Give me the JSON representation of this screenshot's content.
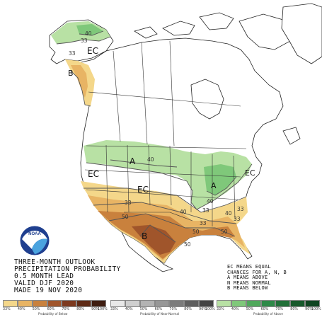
{
  "map": {
    "colors": {
      "below_33": "#f4d78a",
      "below_40": "#e8b464",
      "below_50": "#c9813d",
      "below_60": "#a0552b",
      "above_33": "#b8e1a4",
      "above_40": "#7fc87a",
      "land": "#ffffff",
      "water": "#ffffff",
      "border": "#222222"
    },
    "labels": [
      {
        "text": "EC",
        "id": "ec-alaska"
      },
      {
        "text": "B",
        "id": "b-pacific-nw"
      },
      {
        "text": "A",
        "id": "a-northern-tier"
      },
      {
        "text": "A",
        "id": "a-ohio-valley"
      },
      {
        "text": "EC",
        "id": "ec-west"
      },
      {
        "text": "EC",
        "id": "ec-central"
      },
      {
        "text": "EC",
        "id": "ec-northeast"
      },
      {
        "text": "B",
        "id": "b-southwest"
      }
    ],
    "contours": [
      "40",
      "33",
      "33",
      "40",
      "33",
      "40",
      "33",
      "50",
      "50",
      "33",
      "33",
      "40",
      "50",
      "50",
      "40",
      "33"
    ]
  },
  "info": {
    "line1": "THREE-MONTH OUTLOOK",
    "line2": "PRECIPITATION PROBABILITY",
    "line3": "0.5 MONTH LEAD",
    "line4": "VALID DJF 2020",
    "line5": "MADE 19 NOV 2020"
  },
  "legend_note": {
    "line1": "EC MEANS EQUAL",
    "line2": "CHANCES FOR A, N, B",
    "line3": "A MEANS ABOVE",
    "line4": "N MEANS NORMAL",
    "line5": "B MEANS BELOW"
  },
  "scales": {
    "below": {
      "caption": "Probability of Below",
      "ticks": [
        "33%",
        "40%",
        "50%",
        "60%",
        "70%",
        "80%",
        "90%",
        "100%"
      ],
      "colors": [
        "#f4d78a",
        "#e8b464",
        "#c9813d",
        "#a0552b",
        "#7d3a1f",
        "#5e2a16",
        "#3f1d10"
      ]
    },
    "normal": {
      "caption": "Probability of Near-Normal",
      "ticks": [
        "33%",
        "40%",
        "50%",
        "60%",
        "70%",
        "80%",
        "90%",
        "100%"
      ],
      "colors": [
        "#e8e8e8",
        "#cfcfcf",
        "#b3b3b3",
        "#979797",
        "#7b7b7b",
        "#5f5f5f",
        "#434343"
      ]
    },
    "above": {
      "caption": "Probability of Above",
      "ticks": [
        "33%",
        "40%",
        "50%",
        "60%",
        "70%",
        "80%",
        "90%",
        "100%"
      ],
      "colors": [
        "#b8e1a4",
        "#7fc87a",
        "#4fa85b",
        "#2e8a48",
        "#217038",
        "#17592b",
        "#0f4420"
      ]
    }
  }
}
